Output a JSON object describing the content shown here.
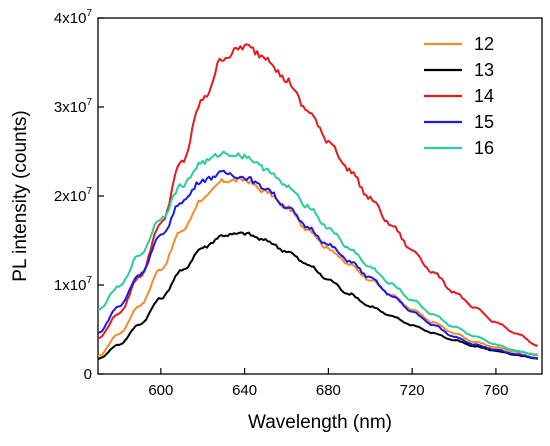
{
  "chart_data": {
    "type": "line",
    "title": "",
    "xlabel": "Wavelength (nm)",
    "ylabel": "PL intensity (counts)",
    "xlim": [
      570,
      782
    ],
    "ylim": [
      0,
      40000000
    ],
    "x_ticks": [
      600,
      640,
      680,
      720,
      760
    ],
    "y_ticks": [
      {
        "value": 0,
        "mantissa": "0",
        "exponent": ""
      },
      {
        "value": 10000000,
        "mantissa": "1x10",
        "exponent": "7"
      },
      {
        "value": 20000000,
        "mantissa": "2x10",
        "exponent": "7"
      },
      {
        "value": 30000000,
        "mantissa": "3x10",
        "exponent": "7"
      },
      {
        "value": 40000000,
        "mantissa": "4x10",
        "exponent": "7"
      }
    ],
    "grid": false,
    "legend_position": "top-right",
    "x": [
      570,
      580,
      590,
      600,
      610,
      620,
      630,
      640,
      650,
      660,
      670,
      680,
      690,
      700,
      710,
      720,
      730,
      740,
      750,
      760,
      770,
      780
    ],
    "series": [
      {
        "name": "12",
        "color": "#f28c28",
        "values": [
          2000000,
          4500000,
          7700000,
          11800000,
          16100000,
          19700000,
          21700000,
          21800000,
          20500000,
          18700000,
          16300000,
          14100000,
          12300000,
          10600000,
          8900000,
          7200000,
          5800000,
          4600000,
          3600000,
          3000000,
          2500000,
          2200000
        ]
      },
      {
        "name": "13",
        "color": "#000000",
        "values": [
          1700000,
          3300000,
          5600000,
          8500000,
          11600000,
          14200000,
          15600000,
          15800000,
          15000000,
          13800000,
          12300000,
          10600000,
          9000000,
          7600000,
          6500000,
          5500000,
          4600000,
          3800000,
          3100000,
          2600000,
          2100000,
          1700000
        ]
      },
      {
        "name": "14",
        "color": "#e41a1c",
        "values": [
          4000000,
          6800000,
          11000000,
          16900000,
          23800000,
          30800000,
          35600000,
          36800000,
          35700000,
          33000000,
          29600000,
          26200000,
          22900000,
          19700000,
          16700000,
          13900000,
          11400000,
          9200000,
          7400000,
          5800000,
          4500000,
          3200000
        ]
      },
      {
        "name": "15",
        "color": "#1a1ae6",
        "values": [
          4600000,
          7600000,
          11200000,
          15500000,
          19400000,
          21800000,
          22600000,
          22100000,
          20900000,
          18800000,
          16500000,
          14500000,
          12700000,
          10800000,
          8800000,
          7000000,
          5500000,
          4200000,
          3300000,
          2700000,
          2200000,
          1800000
        ]
      },
      {
        "name": "16",
        "color": "#29cc9c",
        "values": [
          7200000,
          9800000,
          13400000,
          17500000,
          21200000,
          23800000,
          24800000,
          24500000,
          23100000,
          21100000,
          18900000,
          16400000,
          14100000,
          12000000,
          10100000,
          8300000,
          6700000,
          5300000,
          4200000,
          3300000,
          2600000,
          2100000
        ]
      }
    ]
  }
}
